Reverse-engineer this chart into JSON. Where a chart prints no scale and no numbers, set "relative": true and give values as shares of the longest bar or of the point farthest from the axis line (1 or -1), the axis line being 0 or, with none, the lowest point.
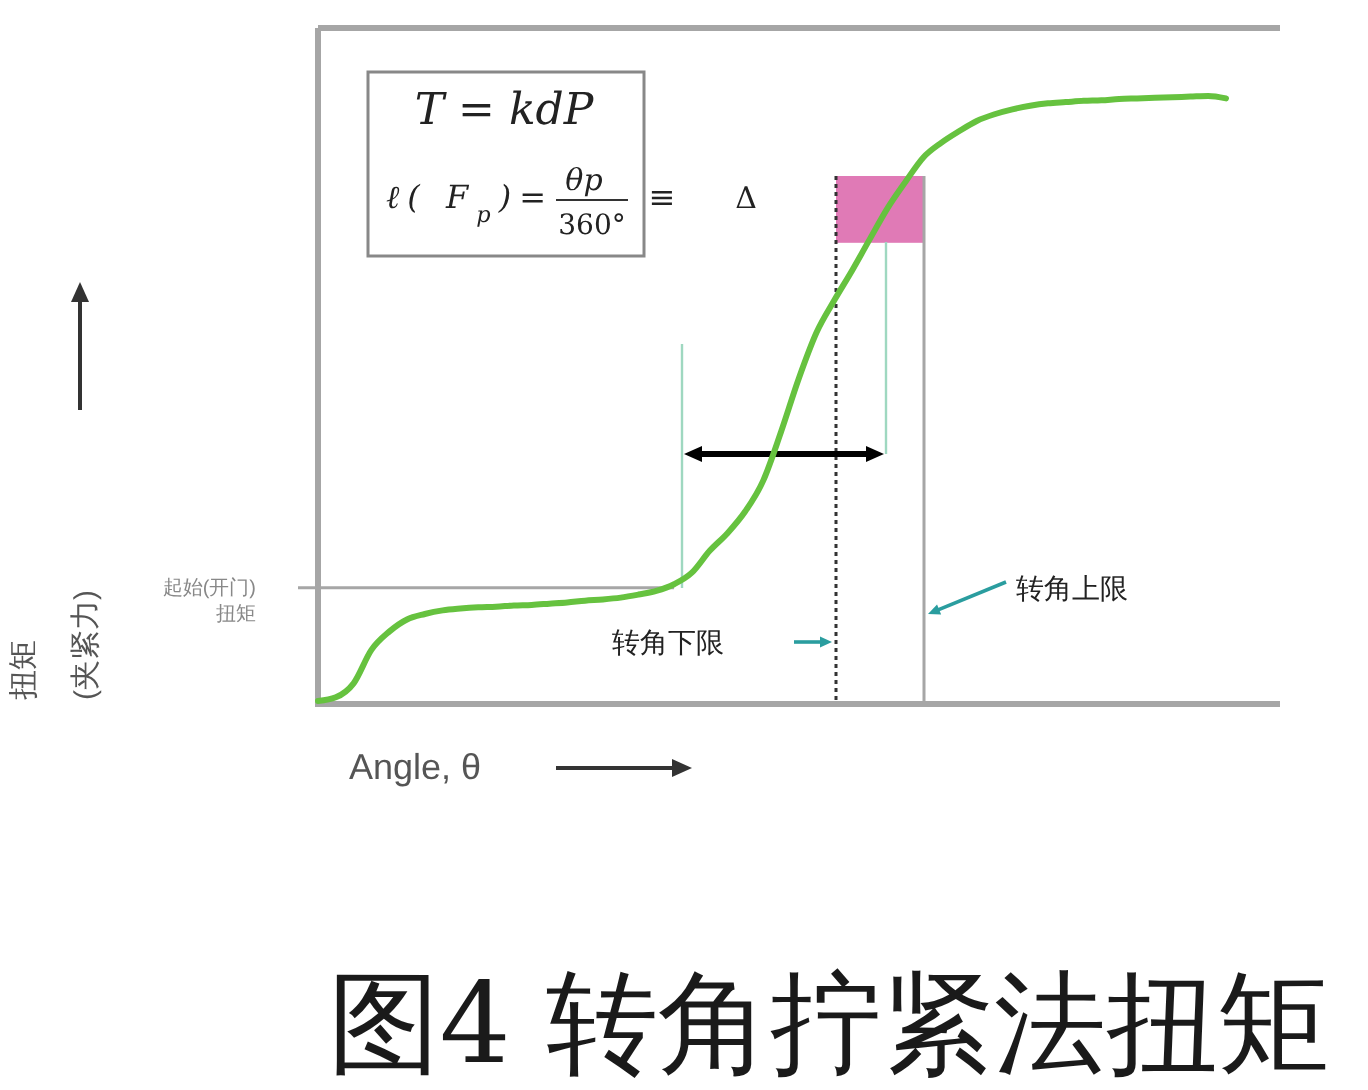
{
  "chart_data": {
    "type": "line",
    "title": "图4 转角拧紧法扭矩",
    "xlabel": "Angle, θ",
    "relative": true,
    "tick_labels": false,
    "categories": [
      null,
      null,
      null,
      null,
      null,
      null,
      null,
      null,
      null,
      null,
      null,
      null,
      null,
      null,
      null,
      null,
      null,
      null,
      null,
      null,
      null,
      null,
      null,
      null,
      null,
      null,
      null,
      null,
      null,
      null,
      null,
      null,
      null,
      null,
      null,
      null,
      null,
      null,
      null,
      null,
      null,
      null,
      null,
      null,
      null,
      null,
      null,
      null,
      null,
      null,
      null,
      null
    ],
    "color": "#66c23f",
    "values": [
      0.005,
      0.011,
      0.034,
      0.089,
      0.119,
      0.139,
      0.148,
      0.154,
      0.157,
      0.159,
      0.16,
      0.162,
      0.163,
      0.165,
      0.167,
      0.17,
      0.172,
      0.175,
      0.18,
      0.186,
      0.197,
      0.216,
      0.252,
      0.281,
      0.317,
      0.367,
      0.447,
      0.535,
      0.611,
      0.664,
      0.713,
      0.765,
      0.816,
      0.859,
      0.899,
      0.923,
      0.942,
      0.959,
      0.97,
      0.978,
      0.984,
      0.988,
      0.99,
      0.992,
      0.993,
      0.995,
      0.996,
      0.997,
      0.998,
      0.999,
      1.0,
      0.996
    ],
    "ref_lines": [
      {
        "axis": "y",
        "value": 0.191,
        "label": "起始(开门)\n扭矩",
        "color": "#a6a6a6"
      }
    ],
    "annotations": [
      "T = kdP",
      "ℓ( F$_{p}$)=",
      "θp",
      "360°",
      "≡",
      "Δ",
      "转角下限",
      "转角上限",
      "扭矩\n(夹紧力)"
    ]
  }
}
